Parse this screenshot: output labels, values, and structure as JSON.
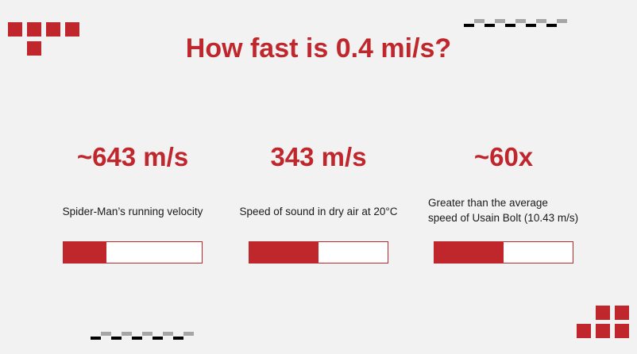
{
  "title": "How fast is 0.4 mi/s?",
  "colors": {
    "accent": "#c0272d",
    "dash_dark": "#000000",
    "dash_light": "#a6a6a6",
    "background": "#f2f2f2"
  },
  "stats": [
    {
      "value": "~643 m/s",
      "label": "Spider-Man’s running velocity",
      "progress": 0.31
    },
    {
      "value": "343 m/s",
      "label": "Speed of sound in dry air at 20°C",
      "progress": 0.5
    },
    {
      "value": "~60x",
      "label": "Greater than the average speed of Usain Bolt (10.43 m/s)",
      "progress": 0.5
    }
  ]
}
